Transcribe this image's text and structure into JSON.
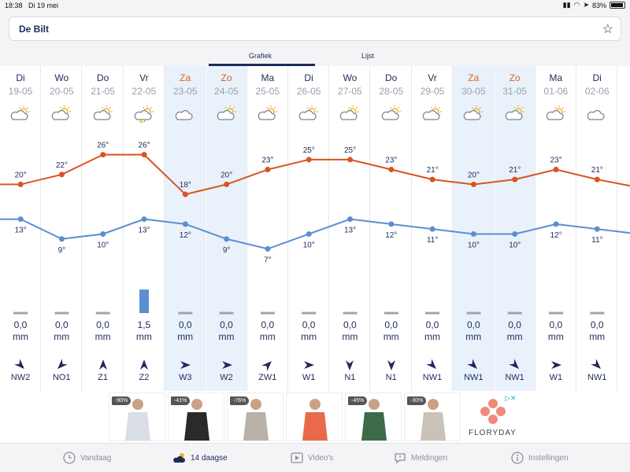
{
  "status": {
    "time": "18:38",
    "date": "Di 19 mei",
    "battery": "83%"
  },
  "header": {
    "location": "De Bilt",
    "tabs": [
      "Grafiek",
      "Lijst"
    ],
    "active_tab": "Grafiek"
  },
  "days": [
    {
      "day": "Di",
      "date": "19-05",
      "max": "20°",
      "min": "13°",
      "precip": "0,0",
      "unit": "mm",
      "wind": "NW2",
      "icon": "partly-cloudy-icon",
      "weekend": false,
      "dir": 135
    },
    {
      "day": "Wo",
      "date": "20-05",
      "max": "22°",
      "min": "9°",
      "precip": "0,0",
      "unit": "mm",
      "wind": "NO1",
      "icon": "partly-cloudy-icon",
      "weekend": false,
      "dir": 225
    },
    {
      "day": "Do",
      "date": "21-05",
      "max": "26°",
      "min": "10°",
      "precip": "0,0",
      "unit": "mm",
      "wind": "Z1",
      "icon": "partly-cloudy-icon",
      "weekend": false,
      "dir": 0
    },
    {
      "day": "Vr",
      "date": "22-05",
      "max": "26°",
      "min": "13°",
      "precip": "1,5",
      "unit": "mm",
      "wind": "Z2",
      "icon": "thunderstorm-icon",
      "weekend": false,
      "dir": 0
    },
    {
      "day": "Za",
      "date": "23-05",
      "max": "18°",
      "min": "12°",
      "precip": "0,0",
      "unit": "mm",
      "wind": "W3",
      "icon": "cloudy-icon",
      "weekend": true,
      "dir": 90
    },
    {
      "day": "Zo",
      "date": "24-05",
      "max": "20°",
      "min": "9°",
      "precip": "0,0",
      "unit": "mm",
      "wind": "W2",
      "icon": "partly-cloudy-icon",
      "weekend": true,
      "dir": 90
    },
    {
      "day": "Ma",
      "date": "25-05",
      "max": "23°",
      "min": "7°",
      "precip": "0,0",
      "unit": "mm",
      "wind": "ZW1",
      "icon": "partly-cloudy-icon",
      "weekend": false,
      "dir": 45
    },
    {
      "day": "Di",
      "date": "26-05",
      "max": "25°",
      "min": "10°",
      "precip": "0,0",
      "unit": "mm",
      "wind": "W1",
      "icon": "partly-cloudy-icon",
      "weekend": false,
      "dir": 90
    },
    {
      "day": "Wo",
      "date": "27-05",
      "max": "25°",
      "min": "13°",
      "precip": "0,0",
      "unit": "mm",
      "wind": "N1",
      "icon": "partly-cloudy-icon",
      "weekend": false,
      "dir": 180
    },
    {
      "day": "Do",
      "date": "28-05",
      "max": "23°",
      "min": "12°",
      "precip": "0,0",
      "unit": "mm",
      "wind": "N1",
      "icon": "partly-cloudy-icon",
      "weekend": false,
      "dir": 180
    },
    {
      "day": "Vr",
      "date": "29-05",
      "max": "21°",
      "min": "11°",
      "precip": "0,0",
      "unit": "mm",
      "wind": "NW1",
      "icon": "partly-cloudy-icon",
      "weekend": false,
      "dir": 135
    },
    {
      "day": "Za",
      "date": "30-05",
      "max": "20°",
      "min": "10°",
      "precip": "0,0",
      "unit": "mm",
      "wind": "NW1",
      "icon": "partly-cloudy-icon",
      "weekend": true,
      "dir": 135
    },
    {
      "day": "Zo",
      "date": "31-05",
      "max": "21°",
      "min": "10°",
      "precip": "0,0",
      "unit": "mm",
      "wind": "NW1",
      "icon": "partly-cloudy-icon",
      "weekend": true,
      "dir": 135
    },
    {
      "day": "Ma",
      "date": "01-06",
      "max": "23°",
      "min": "12°",
      "precip": "0,0",
      "unit": "mm",
      "wind": "W1",
      "icon": "partly-cloudy-icon",
      "weekend": false,
      "dir": 90
    },
    {
      "day": "Di",
      "date": "02-06",
      "max": "21°",
      "min": "11°",
      "precip": "0,0",
      "unit": "mm",
      "wind": "NW1",
      "icon": "cloudy-icon",
      "weekend": false,
      "dir": 135
    }
  ],
  "chart_data": {
    "type": "line",
    "x": [
      "19-05",
      "20-05",
      "21-05",
      "22-05",
      "23-05",
      "24-05",
      "25-05",
      "26-05",
      "27-05",
      "28-05",
      "29-05",
      "30-05",
      "31-05",
      "01-06",
      "02-06"
    ],
    "series": [
      {
        "values": [
          20,
          22,
          26,
          26,
          18,
          20,
          23,
          25,
          25,
          23,
          21,
          20,
          21,
          23,
          21
        ],
        "color": "#d9541e"
      },
      {
        "values": [
          13,
          9,
          10,
          13,
          12,
          9,
          7,
          10,
          13,
          12,
          11,
          10,
          10,
          12,
          11
        ],
        "color": "#5b8fcf"
      }
    ],
    "precip_mm": [
      0,
      0,
      0,
      1.5,
      0,
      0,
      0,
      0,
      0,
      0,
      0,
      0,
      0,
      0,
      0
    ],
    "ylim": [
      5,
      28
    ]
  },
  "ad": {
    "badges": [
      "-90%",
      "-41%",
      "-76%",
      "",
      "-45%",
      "-30%"
    ],
    "brand": "FLORYDAY"
  },
  "bottom_nav": [
    {
      "label": "Vandaag",
      "icon": "clock-icon",
      "active": false
    },
    {
      "label": "14 daagse",
      "icon": "weather-cloud-icon",
      "active": true
    },
    {
      "label": "Video's",
      "icon": "video-icon",
      "active": false
    },
    {
      "label": "Meldingen",
      "icon": "alert-icon",
      "active": false
    },
    {
      "label": "Instellingen",
      "icon": "info-icon",
      "active": false
    }
  ]
}
